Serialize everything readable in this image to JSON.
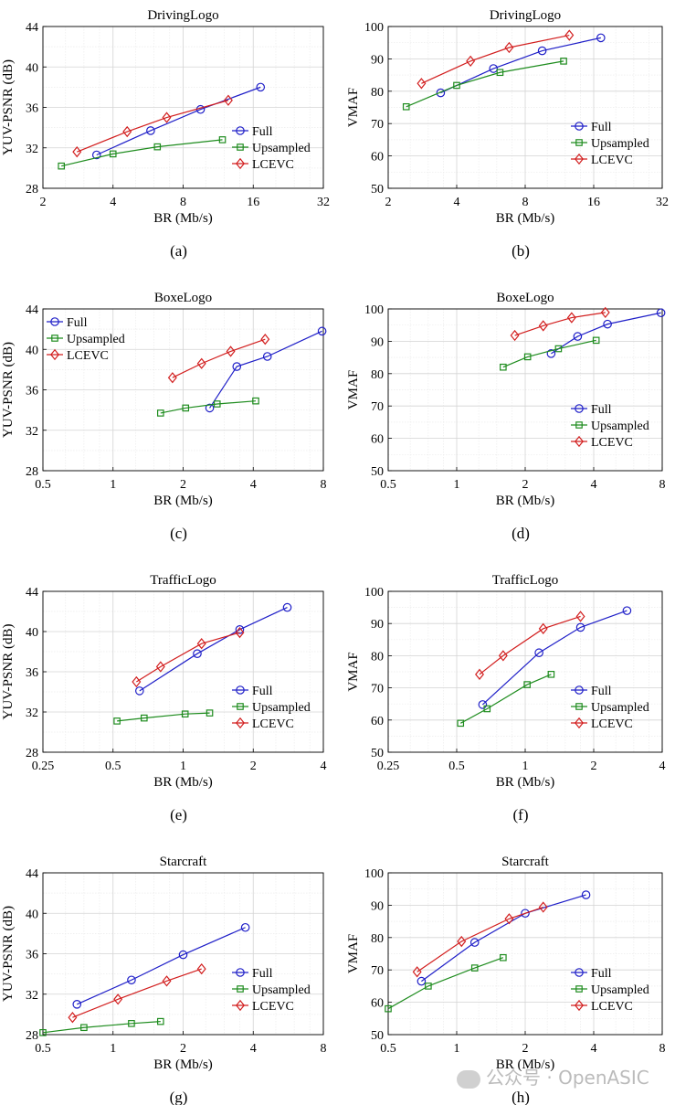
{
  "colors": {
    "Full": "#1f1fc8",
    "Upsampled": "#1e8c1e",
    "LCEVC": "#d21e1e"
  },
  "watermark": "公众号 · OpenASIC",
  "chart_data": [
    {
      "type": "line",
      "panel": "(a)",
      "title": "DrivingLogo",
      "xlabel": "BR (Mb/s)",
      "ylabel": "YUV-PSNR (dB)",
      "xscale": "log2",
      "xlim": [
        2,
        32
      ],
      "ylim": [
        28,
        44
      ],
      "xticks": [
        2,
        4,
        8,
        16,
        32
      ],
      "xticklabels": [
        "2",
        "4",
        "8",
        "16",
        "32"
      ],
      "yticks": [
        28,
        32,
        36,
        40,
        44
      ],
      "legend_loc": "right",
      "series": [
        {
          "name": "Full",
          "marker": "circle",
          "x": [
            3.4,
            5.8,
            9.5,
            17.2
          ],
          "y": [
            31.3,
            33.7,
            35.8,
            38.0
          ]
        },
        {
          "name": "Upsampled",
          "marker": "square",
          "x": [
            2.4,
            4.0,
            6.2,
            11.8
          ],
          "y": [
            30.2,
            31.4,
            32.1,
            32.8
          ]
        },
        {
          "name": "LCEVC",
          "marker": "diamond",
          "x": [
            2.8,
            4.6,
            6.8,
            12.5
          ],
          "y": [
            31.6,
            33.6,
            35.0,
            36.7
          ]
        }
      ]
    },
    {
      "type": "line",
      "panel": "(b)",
      "title": "DrivingLogo",
      "xlabel": "BR (Mb/s)",
      "ylabel": "VMAF",
      "xscale": "log2",
      "xlim": [
        2,
        32
      ],
      "ylim": [
        50,
        100
      ],
      "xticks": [
        2,
        4,
        8,
        16,
        32
      ],
      "xticklabels": [
        "2",
        "4",
        "8",
        "16",
        "32"
      ],
      "yticks": [
        50,
        60,
        70,
        80,
        90,
        100
      ],
      "legend_loc": "lower right",
      "series": [
        {
          "name": "Full",
          "marker": "circle",
          "x": [
            3.4,
            5.8,
            9.5,
            17.2
          ],
          "y": [
            79.5,
            87.0,
            92.5,
            96.5
          ]
        },
        {
          "name": "Upsampled",
          "marker": "square",
          "x": [
            2.4,
            4.0,
            6.2,
            11.8
          ],
          "y": [
            75.2,
            81.8,
            85.8,
            89.3
          ]
        },
        {
          "name": "LCEVC",
          "marker": "diamond",
          "x": [
            2.8,
            4.6,
            6.8,
            12.5
          ],
          "y": [
            82.4,
            89.3,
            93.5,
            97.3
          ]
        }
      ]
    },
    {
      "type": "line",
      "panel": "(c)",
      "title": "BoxeLogo",
      "xlabel": "BR (Mb/s)",
      "ylabel": "YUV-PSNR (dB)",
      "xscale": "log2",
      "xlim": [
        0.5,
        8
      ],
      "ylim": [
        28,
        44
      ],
      "xticks": [
        0.5,
        1,
        2,
        4,
        8
      ],
      "xticklabels": [
        "0.5",
        "1",
        "2",
        "4",
        "8"
      ],
      "yticks": [
        28,
        32,
        36,
        40,
        44
      ],
      "legend_loc": "top-left",
      "series": [
        {
          "name": "Full",
          "marker": "circle",
          "x": [
            2.6,
            3.4,
            4.6,
            7.9
          ],
          "y": [
            34.2,
            38.3,
            39.3,
            41.8
          ]
        },
        {
          "name": "Upsampled",
          "marker": "square",
          "x": [
            1.6,
            2.05,
            2.8,
            4.1
          ],
          "y": [
            33.7,
            34.2,
            34.6,
            34.9
          ]
        },
        {
          "name": "LCEVC",
          "marker": "diamond",
          "x": [
            1.8,
            2.4,
            3.2,
            4.5
          ],
          "y": [
            37.2,
            38.6,
            39.8,
            41.0
          ]
        }
      ]
    },
    {
      "type": "line",
      "panel": "(d)",
      "title": "BoxeLogo",
      "xlabel": "BR (Mb/s)",
      "ylabel": "VMAF",
      "xscale": "log2",
      "xlim": [
        0.5,
        8
      ],
      "ylim": [
        50,
        100
      ],
      "xticks": [
        0.5,
        1,
        2,
        4,
        8
      ],
      "xticklabels": [
        "0.5",
        "1",
        "2",
        "4",
        "8"
      ],
      "yticks": [
        50,
        60,
        70,
        80,
        90,
        100
      ],
      "legend_loc": "lower right",
      "series": [
        {
          "name": "Full",
          "marker": "circle",
          "x": [
            2.6,
            3.4,
            4.6,
            7.9
          ],
          "y": [
            86.2,
            91.5,
            95.3,
            98.8
          ]
        },
        {
          "name": "Upsampled",
          "marker": "square",
          "x": [
            1.6,
            2.05,
            2.8,
            4.1
          ],
          "y": [
            82.0,
            85.2,
            87.7,
            90.3
          ]
        },
        {
          "name": "LCEVC",
          "marker": "diamond",
          "x": [
            1.8,
            2.4,
            3.2,
            4.5
          ],
          "y": [
            91.8,
            94.8,
            97.3,
            98.9
          ]
        }
      ]
    },
    {
      "type": "line",
      "panel": "(e)",
      "title": "TrafficLogo",
      "xlabel": "BR (Mb/s)",
      "ylabel": "YUV-PSNR (dB)",
      "xscale": "log2",
      "xlim": [
        0.25,
        4
      ],
      "ylim": [
        28,
        44
      ],
      "xticks": [
        0.25,
        0.5,
        1,
        2,
        4
      ],
      "xticklabels": [
        "0.25",
        "0.5",
        "1",
        "2",
        "4"
      ],
      "yticks": [
        28,
        32,
        36,
        40,
        44
      ],
      "legend_loc": "lower right",
      "series": [
        {
          "name": "Full",
          "marker": "circle",
          "x": [
            0.65,
            1.15,
            1.75,
            2.8
          ],
          "y": [
            34.1,
            37.8,
            40.2,
            42.4
          ]
        },
        {
          "name": "Upsampled",
          "marker": "square",
          "x": [
            0.52,
            0.68,
            1.02,
            1.3
          ],
          "y": [
            31.1,
            31.4,
            31.8,
            31.9
          ]
        },
        {
          "name": "LCEVC",
          "marker": "diamond",
          "x": [
            0.63,
            0.8,
            1.2,
            1.75
          ],
          "y": [
            35.0,
            36.5,
            38.8,
            39.9
          ]
        }
      ]
    },
    {
      "type": "line",
      "panel": "(f)",
      "title": "TrafficLogo",
      "xlabel": "BR (Mb/s)",
      "ylabel": "VMAF",
      "xscale": "log2",
      "xlim": [
        0.25,
        4
      ],
      "ylim": [
        50,
        100
      ],
      "xticks": [
        0.25,
        0.5,
        1,
        2,
        4
      ],
      "xticklabels": [
        "0.25",
        "0.5",
        "1",
        "2",
        "4"
      ],
      "yticks": [
        50,
        60,
        70,
        80,
        90,
        100
      ],
      "legend_loc": "lower right",
      "series": [
        {
          "name": "Full",
          "marker": "circle",
          "x": [
            0.65,
            1.15,
            1.75,
            2.8
          ],
          "y": [
            64.8,
            80.9,
            88.8,
            94.0
          ]
        },
        {
          "name": "Upsampled",
          "marker": "square",
          "x": [
            0.52,
            0.68,
            1.02,
            1.3
          ],
          "y": [
            59.0,
            63.5,
            71.0,
            74.2
          ]
        },
        {
          "name": "LCEVC",
          "marker": "diamond",
          "x": [
            0.63,
            0.8,
            1.2,
            1.75
          ],
          "y": [
            74.2,
            80.0,
            88.4,
            92.2
          ]
        }
      ]
    },
    {
      "type": "line",
      "panel": "(g)",
      "title": "Starcraft",
      "xlabel": "BR (Mb/s)",
      "ylabel": "YUV-PSNR (dB)",
      "xscale": "log2",
      "xlim": [
        0.5,
        8
      ],
      "ylim": [
        28,
        44
      ],
      "xticks": [
        0.5,
        1,
        2,
        4,
        8
      ],
      "xticklabels": [
        "0.5",
        "1",
        "2",
        "4",
        "8"
      ],
      "yticks": [
        28,
        32,
        36,
        40,
        44
      ],
      "legend_loc": "lower right",
      "series": [
        {
          "name": "Full",
          "marker": "circle",
          "x": [
            0.7,
            1.2,
            2.0,
            3.7
          ],
          "y": [
            31.0,
            33.4,
            35.9,
            38.6
          ]
        },
        {
          "name": "Upsampled",
          "marker": "square",
          "x": [
            0.5,
            0.75,
            1.2,
            1.6
          ],
          "y": [
            28.2,
            28.7,
            29.1,
            29.3
          ]
        },
        {
          "name": "LCEVC",
          "marker": "diamond",
          "x": [
            0.67,
            1.05,
            1.7,
            2.4
          ],
          "y": [
            29.7,
            31.5,
            33.3,
            34.5
          ]
        }
      ]
    },
    {
      "type": "line",
      "panel": "(h)",
      "title": "Starcraft",
      "xlabel": "BR (Mb/s)",
      "ylabel": "VMAF",
      "xscale": "log2",
      "xlim": [
        0.5,
        8
      ],
      "ylim": [
        50,
        100
      ],
      "xticks": [
        0.5,
        1,
        2,
        4,
        8
      ],
      "xticklabels": [
        "0.5",
        "1",
        "2",
        "4",
        "8"
      ],
      "yticks": [
        50,
        60,
        70,
        80,
        90,
        100
      ],
      "legend_loc": "lower right",
      "series": [
        {
          "name": "Full",
          "marker": "circle",
          "x": [
            0.7,
            1.2,
            2.0,
            3.7
          ],
          "y": [
            66.5,
            78.5,
            87.5,
            93.2
          ]
        },
        {
          "name": "Upsampled",
          "marker": "square",
          "x": [
            0.5,
            0.75,
            1.2,
            1.6
          ],
          "y": [
            58.0,
            65.0,
            70.6,
            73.8
          ]
        },
        {
          "name": "LCEVC",
          "marker": "diamond",
          "x": [
            0.67,
            1.05,
            1.7,
            2.4
          ],
          "y": [
            69.4,
            78.8,
            85.8,
            89.4
          ]
        }
      ]
    }
  ]
}
